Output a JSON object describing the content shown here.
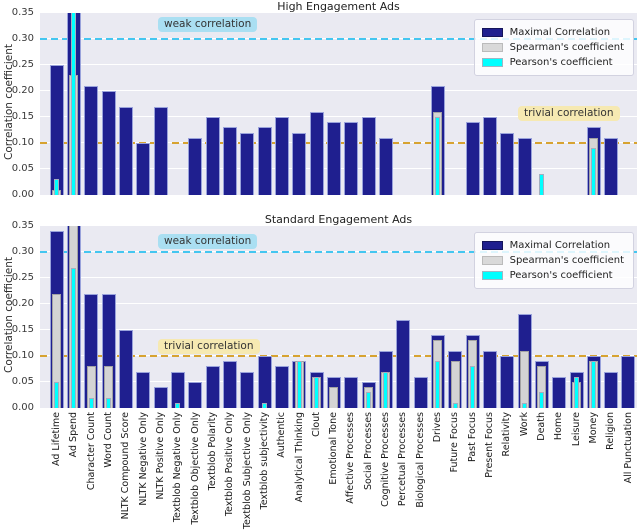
{
  "figure": {
    "ylabel": "Correlation coefficient",
    "y_ticks": [
      "0.00",
      "0.05",
      "0.10",
      "0.15",
      "0.20",
      "0.25",
      "0.30",
      "0.35"
    ],
    "note": "values of 0.36 represent bars clipped at the axis top (exceed 0.35); null means no bar drawn",
    "colors": {
      "maximal": "#1f1f8f",
      "spearman": "#d4d4d4",
      "pearson": "#00ffff",
      "weak_line": "#44c6f0",
      "trivial_line": "#d7a331",
      "plot_background": "#eaeaf2",
      "weak_label_bg": "#aadff2",
      "trivial_label_bg": "#f6e9b2"
    }
  },
  "legend": {
    "items": [
      {
        "name": "Maximal Correlation",
        "key": "maximal"
      },
      {
        "name": "Spearman's coefficient",
        "key": "spearman"
      },
      {
        "name": "Pearson's coefficient",
        "key": "pearson"
      }
    ]
  },
  "chart_data": [
    {
      "type": "bar",
      "title": "High Engagement Ads",
      "ylabel": "Correlation coefficient",
      "ylim": [
        0,
        0.35
      ],
      "grid": true,
      "legend_position": "upper right",
      "annotations": [
        {
          "text": "weak correlation",
          "y": 0.3
        },
        {
          "text": "trivial correlation",
          "y": 0.1
        }
      ],
      "reference_lines": [
        {
          "y": 0.3,
          "style": "dashed",
          "color": "#44c6f0"
        },
        {
          "y": 0.1,
          "style": "dashed",
          "color": "#d7a331"
        }
      ],
      "categories": [
        "Ad Lifetime",
        "Ad Spend",
        "Character Count",
        "Word Count",
        "NLTK Compound Score",
        "NLTK Negative Only",
        "NLTK Positive Only",
        "Textblob Negative Only",
        "Textblob Objective Only",
        "Textblob Polarity",
        "Textblob Positive Only",
        "Textblob Subjective Only",
        "Textblob subjectivity",
        "Authentic",
        "Analytical Thinking",
        "Clout",
        "Emotional Tone",
        "Affective Processes",
        "Social Processes",
        "Cognitive Processes",
        "Percetual Processes",
        "Biological Processes",
        "Drives",
        "Future Focus",
        "Past Focus",
        "Present Focus",
        "Relativity",
        "Work",
        "Death",
        "Home",
        "Leisure",
        "Money",
        "Religion",
        "All Punctuation"
      ],
      "series": [
        {
          "name": "Maximal Correlation",
          "values": [
            0.25,
            0.36,
            0.21,
            0.2,
            0.17,
            0.1,
            0.17,
            null,
            0.11,
            0.15,
            0.13,
            0.12,
            0.13,
            0.15,
            0.12,
            0.16,
            0.14,
            0.14,
            0.15,
            0.11,
            null,
            null,
            0.21,
            null,
            0.14,
            0.15,
            0.12,
            0.11,
            null,
            null,
            null,
            0.13,
            0.11,
            null
          ]
        },
        {
          "name": "Spearman's coefficient",
          "values": [
            0.01,
            0.23,
            null,
            null,
            null,
            null,
            null,
            null,
            null,
            null,
            null,
            null,
            null,
            null,
            null,
            null,
            null,
            null,
            null,
            null,
            null,
            null,
            0.16,
            null,
            null,
            null,
            null,
            null,
            null,
            null,
            null,
            0.11,
            null,
            null
          ]
        },
        {
          "name": "Pearson's coefficient",
          "values": [
            0.03,
            0.36,
            null,
            null,
            null,
            null,
            null,
            null,
            null,
            null,
            null,
            null,
            null,
            null,
            null,
            null,
            null,
            null,
            null,
            null,
            null,
            null,
            0.15,
            null,
            null,
            null,
            null,
            null,
            0.04,
            null,
            null,
            0.09,
            null,
            null
          ]
        }
      ]
    },
    {
      "type": "bar",
      "title": "Standard Engagement Ads",
      "ylabel": "Correlation coefficient",
      "ylim": [
        0,
        0.35
      ],
      "grid": true,
      "legend_position": "upper right",
      "annotations": [
        {
          "text": "weak correlation",
          "y": 0.3
        },
        {
          "text": "trivial correlation",
          "y": 0.1
        }
      ],
      "reference_lines": [
        {
          "y": 0.3,
          "style": "dashed",
          "color": "#44c6f0"
        },
        {
          "y": 0.1,
          "style": "dashed",
          "color": "#d7a331"
        }
      ],
      "categories": [
        "Ad Lifetime",
        "Ad Spend",
        "Character Count",
        "Word Count",
        "NLTK Compound Score",
        "NLTK Negative Only",
        "NLTK Positive Only",
        "Textblob Negative Only",
        "Textblob Objective Only",
        "Textblob Polarity",
        "Textblob Positive Only",
        "Textblob Subjective Only",
        "Textblob subjectivity",
        "Authentic",
        "Analytical Thinking",
        "Clout",
        "Emotional Tone",
        "Affective Processes",
        "Social Processes",
        "Cognitive Processes",
        "Percetual Processes",
        "Biological Processes",
        "Drives",
        "Future Focus",
        "Past Focus",
        "Present Focus",
        "Relativity",
        "Work",
        "Death",
        "Home",
        "Leisure",
        "Money",
        "Religion",
        "All Punctuation"
      ],
      "series": [
        {
          "name": "Maximal Correlation",
          "values": [
            0.34,
            0.36,
            0.22,
            0.22,
            0.15,
            0.07,
            0.04,
            0.07,
            0.05,
            0.08,
            0.09,
            0.07,
            0.1,
            0.08,
            0.09,
            0.07,
            0.06,
            0.06,
            0.05,
            0.11,
            0.17,
            0.06,
            0.14,
            0.11,
            0.14,
            0.11,
            0.1,
            0.18,
            0.09,
            0.06,
            0.07,
            0.1,
            0.07,
            0.1
          ]
        },
        {
          "name": "Spearman's coefficient",
          "values": [
            0.22,
            0.36,
            0.08,
            0.08,
            null,
            null,
            null,
            null,
            null,
            null,
            null,
            null,
            null,
            null,
            0.09,
            0.06,
            0.04,
            null,
            0.04,
            0.07,
            null,
            null,
            0.13,
            0.09,
            0.13,
            null,
            null,
            0.11,
            0.08,
            null,
            0.05,
            0.09,
            null,
            null
          ]
        },
        {
          "name": "Pearson's coefficient",
          "values": [
            0.05,
            0.27,
            0.02,
            0.02,
            null,
            null,
            null,
            0.01,
            null,
            null,
            null,
            null,
            0.01,
            null,
            0.09,
            0.06,
            null,
            null,
            0.03,
            0.07,
            null,
            null,
            0.09,
            0.01,
            0.08,
            null,
            null,
            0.01,
            0.03,
            null,
            0.06,
            0.09,
            null,
            null
          ]
        }
      ]
    }
  ]
}
